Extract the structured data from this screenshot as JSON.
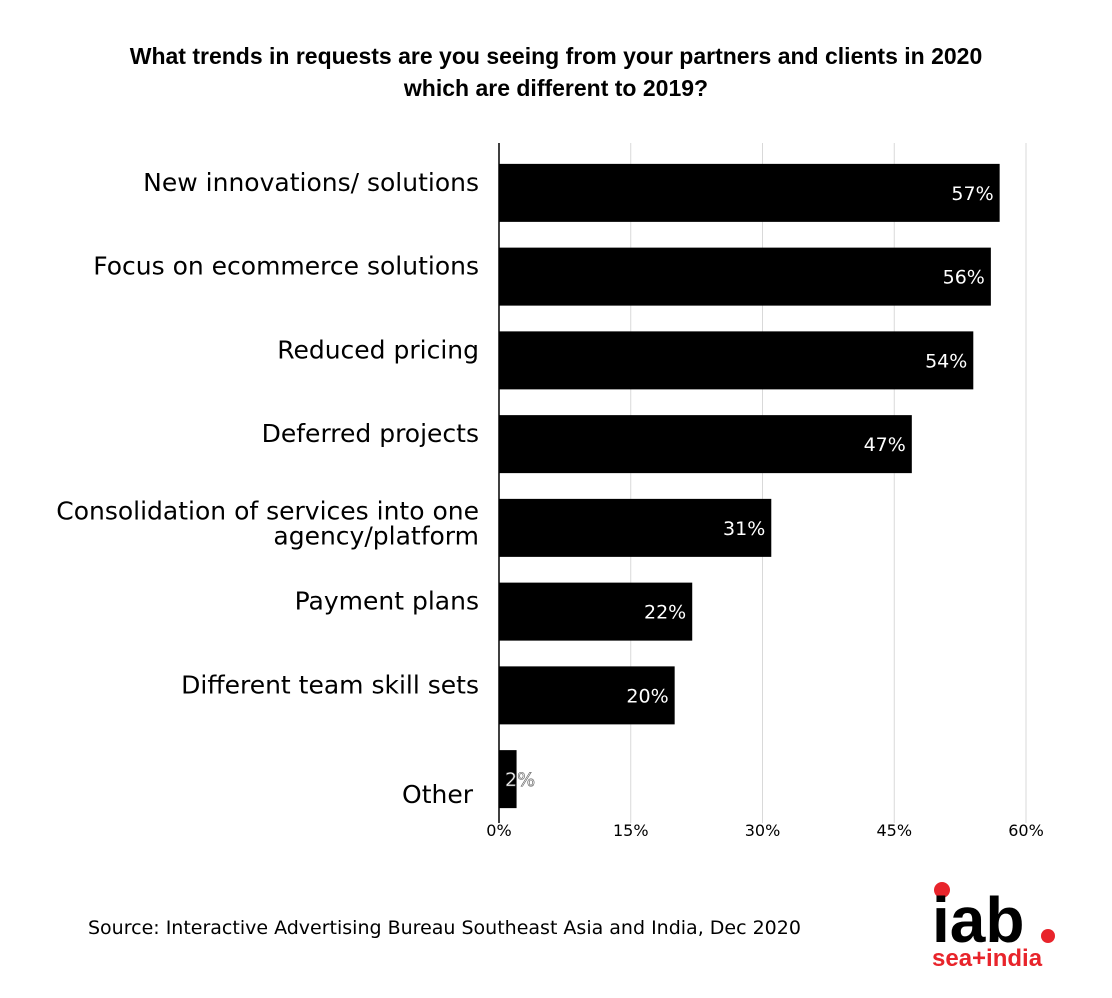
{
  "title": {
    "line1": "What trends in requests are you seeing from your partners and clients in 2020",
    "line2": "which are different to 2019?"
  },
  "source": "Source: Interactive Advertising Bureau Southeast Asia and India, Dec 2020",
  "logo": {
    "top": "iab",
    "bottom": "sea+india",
    "accent": "#e8242b"
  },
  "chart_data": {
    "type": "bar",
    "orientation": "horizontal",
    "categories": [
      "New innovations/ solutions",
      "Focus on ecommerce solutions",
      "Reduced pricing",
      "Deferred projects",
      "Consolidation of services into one agency/platform",
      "Payment plans",
      "Different team skill sets",
      "Other"
    ],
    "category_lines": [
      [
        "New innovations/ solutions"
      ],
      [
        "Focus on ecommerce solutions"
      ],
      [
        "Reduced pricing"
      ],
      [
        "Deferred projects"
      ],
      [
        "Consolidation of services into one",
        "agency/platform"
      ],
      [
        "Payment plans"
      ],
      [
        "Different team skill sets"
      ],
      [
        "Other"
      ]
    ],
    "values": [
      57,
      56,
      54,
      47,
      31,
      22,
      20,
      2
    ],
    "data_labels": [
      "57%",
      "56%",
      "54%",
      "47%",
      "31%",
      "22%",
      "20%",
      "2%"
    ],
    "xticks": [
      "0%",
      "15%",
      "30%",
      "45%",
      "60%"
    ],
    "xtick_values": [
      0,
      15,
      30,
      45,
      60
    ],
    "xlim": [
      0,
      60
    ],
    "grid": true,
    "bar_color": "#000000",
    "label_color": "#ffffff",
    "grid_color": "#d9d9d9"
  }
}
